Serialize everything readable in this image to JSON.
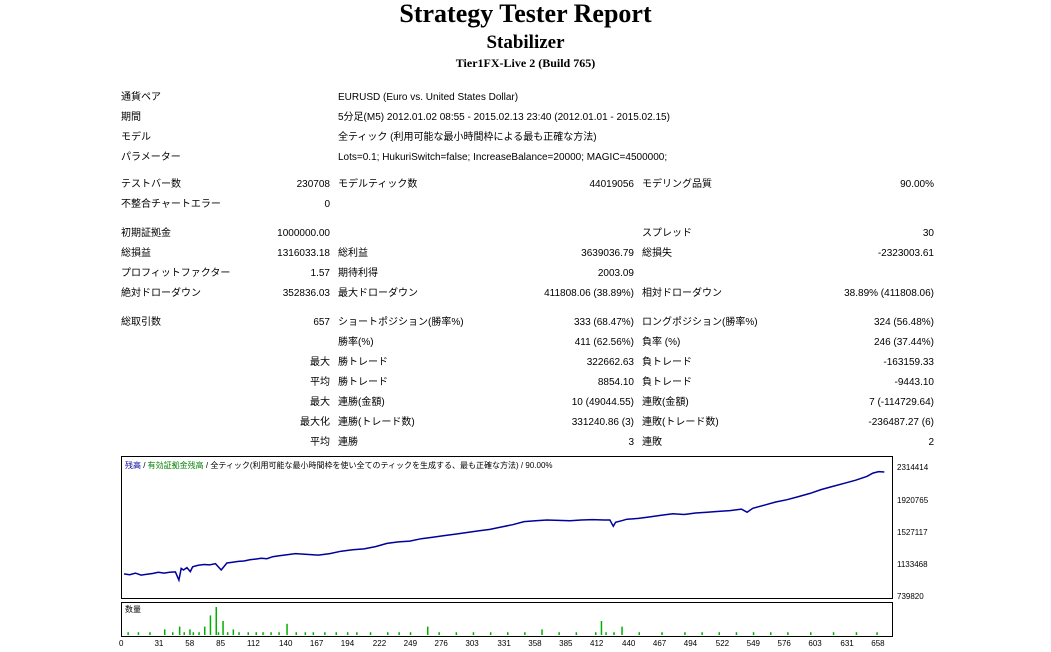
{
  "header": {
    "title": "Strategy Tester Report",
    "subtitle": "Stabilizer",
    "server": "Tier1FX-Live 2 (Build 765)"
  },
  "info": [
    {
      "label": "通貨ペア",
      "value": "EURUSD (Euro vs. United States Dollar)"
    },
    {
      "label": "期間",
      "value": "5分足(M5) 2012.01.02 08:55 - 2015.02.13 23:40 (2012.01.01 - 2015.02.15)"
    },
    {
      "label": "モデル",
      "value": "全ティック (利用可能な最小時間枠による最も正確な方法)"
    },
    {
      "label": "パラメーター",
      "value": "Lots=0.1; HukuriSwitch=false; IncreaseBalance=20000; MAGIC=4500000;"
    }
  ],
  "stats": {
    "bars_label": "テストバー数",
    "bars": "230708",
    "ticks_label": "モデルティック数",
    "ticks": "44019056",
    "quality_label": "モデリング品質",
    "quality": "90.00%",
    "mismatch_label": "不整合チャートエラー",
    "mismatch": "0",
    "deposit_label": "初期証拠金",
    "deposit": "1000000.00",
    "spread_label": "スプレッド",
    "spread": "30",
    "net_label": "総損益",
    "net": "1316033.18",
    "gross_profit_label": "総利益",
    "gross_profit": "3639036.79",
    "gross_loss_label": "総損失",
    "gross_loss": "-2323003.61",
    "pf_label": "プロフィットファクター",
    "pf": "1.57",
    "payoff_label": "期待利得",
    "payoff": "2003.09",
    "abs_dd_label": "絶対ドローダウン",
    "abs_dd": "352836.03",
    "max_dd_label": "最大ドローダウン",
    "max_dd": "411808.06 (38.89%)",
    "rel_dd_label": "相対ドローダウン",
    "rel_dd": "38.89% (411808.06)"
  },
  "trades": {
    "total_label": "総取引数",
    "total": "657",
    "short_label": "ショートポジション(勝率%)",
    "short": "333 (68.47%)",
    "long_label": "ロングポジション(勝率%)",
    "long": "324 (56.48%)",
    "rows": [
      {
        "pre": "",
        "l1": "勝率(%)",
        "v1": "411 (62.56%)",
        "l2": "負率 (%)",
        "v2": "246 (37.44%)"
      },
      {
        "pre": "最大",
        "l1": "勝トレード",
        "v1": "322662.63",
        "l2": "負トレード",
        "v2": "-163159.33"
      },
      {
        "pre": "平均",
        "l1": "勝トレード",
        "v1": "8854.10",
        "l2": "負トレード",
        "v2": "-9443.10"
      },
      {
        "pre": "最大",
        "l1": "連勝(金額)",
        "v1": "10 (49044.55)",
        "l2": "連敗(金額)",
        "v2": "7 (-114729.64)"
      },
      {
        "pre": "最大化",
        "l1": "連勝(トレード数)",
        "v1": "331240.86 (3)",
        "l2": "連敗(トレード数)",
        "v2": "-236487.27 (6)"
      },
      {
        "pre": "平均",
        "l1": "連勝",
        "v1": "3",
        "l2": "連敗",
        "v2": "2"
      }
    ]
  },
  "chart_caption": {
    "balance": "残高",
    "sep1": " / ",
    "equity": "有効証拠金残高",
    "sep2": " / ",
    "rest": "全ティック(利用可能な最小時間枠を使い全てのティックを生成する、最も正確な方法) / 90.00%"
  },
  "volume_label": "数量",
  "colors": {
    "balance": "#00009c",
    "equity": "#008000",
    "volume": "#00b000"
  },
  "chart_data": {
    "type": "line",
    "ylim": [
      739820,
      2314414
    ],
    "y_ticks": [
      "2314414",
      "1920765",
      "1527117",
      "1133468",
      "739820"
    ],
    "x_ticks": [
      "0",
      "31",
      "58",
      "85",
      "112",
      "140",
      "167",
      "194",
      "222",
      "249",
      "276",
      "303",
      "331",
      "358",
      "385",
      "412",
      "440",
      "467",
      "494",
      "522",
      "549",
      "576",
      "603",
      "631",
      "658"
    ],
    "series": [
      {
        "x": [
          0,
          5,
          10,
          15,
          20,
          25,
          30,
          35,
          40,
          45,
          48,
          50,
          52,
          55,
          58,
          60,
          62,
          65,
          70,
          75,
          80,
          85,
          90,
          95,
          100,
          105,
          110,
          115,
          120,
          125,
          130,
          135,
          140,
          145,
          150,
          160,
          170,
          180,
          190,
          200,
          210,
          220,
          230,
          240,
          250,
          260,
          270,
          280,
          290,
          300,
          310,
          320,
          330,
          340,
          350,
          360,
          370,
          380,
          390,
          400,
          410,
          420,
          425,
          428,
          430,
          435,
          440,
          450,
          460,
          470,
          480,
          490,
          500,
          510,
          520,
          530,
          540,
          545,
          550,
          560,
          570,
          580,
          590,
          600,
          610,
          620,
          630,
          640,
          650,
          655,
          660,
          665
        ],
        "values": [
          1010000,
          1000000,
          1020000,
          995000,
          1005000,
          1015000,
          1030000,
          1020000,
          1030000,
          1035000,
          930000,
          1080000,
          1060000,
          1090000,
          1040000,
          1100000,
          1110000,
          1120000,
          1130000,
          1125000,
          1140000,
          1060000,
          1150000,
          1160000,
          1170000,
          1175000,
          1190000,
          1200000,
          1210000,
          1205000,
          1230000,
          1240000,
          1250000,
          1260000,
          1270000,
          1260000,
          1250000,
          1270000,
          1300000,
          1320000,
          1330000,
          1360000,
          1400000,
          1420000,
          1430000,
          1460000,
          1480000,
          1500000,
          1520000,
          1540000,
          1560000,
          1580000,
          1610000,
          1640000,
          1680000,
          1690000,
          1700000,
          1695000,
          1690000,
          1700000,
          1705000,
          1700000,
          1700000,
          1620000,
          1670000,
          1690000,
          1710000,
          1720000,
          1740000,
          1760000,
          1780000,
          1770000,
          1790000,
          1800000,
          1810000,
          1820000,
          1840000,
          1800000,
          1850000,
          1890000,
          1930000,
          1960000,
          2000000,
          2040000,
          2090000,
          2130000,
          2170000,
          2210000,
          2260000,
          2300000,
          2320000,
          2314414
        ]
      }
    ]
  },
  "volume_data": {
    "type": "bar",
    "x": [
      3,
      12,
      22,
      35,
      42,
      48,
      52,
      57,
      60,
      65,
      70,
      75,
      80,
      82,
      86,
      90,
      95,
      100,
      108,
      115,
      121,
      128,
      135,
      142,
      150,
      158,
      165,
      175,
      185,
      195,
      203,
      215,
      230,
      240,
      250,
      265,
      275,
      290,
      305,
      320,
      335,
      350,
      365,
      380,
      395,
      412,
      417,
      421,
      428,
      435,
      450,
      470,
      490,
      505,
      520,
      535,
      550,
      565,
      580,
      600,
      620,
      640,
      658
    ],
    "values": [
      1,
      1,
      1,
      2,
      1,
      3,
      1,
      2,
      1,
      1,
      3,
      7,
      10,
      1,
      5,
      1,
      2,
      1,
      1,
      1,
      1,
      1,
      1,
      4,
      1,
      1,
      1,
      1,
      1,
      1,
      1,
      1,
      1,
      1,
      1,
      3,
      1,
      1,
      1,
      1,
      1,
      1,
      2,
      1,
      1,
      1,
      5,
      1,
      1,
      3,
      1,
      1,
      1,
      1,
      1,
      1,
      1,
      1,
      1,
      1,
      1,
      1,
      1
    ]
  }
}
